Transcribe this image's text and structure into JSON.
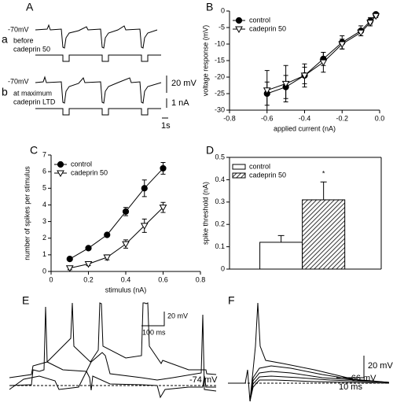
{
  "panels": {
    "a": {
      "letter": "A",
      "sub_a": "a",
      "rest_a": "-70mV",
      "cond_a1": "before",
      "cond_a2": "cadeprin 50",
      "sub_b": "b",
      "rest_b": "-70mV",
      "cond_b1": "at maximum",
      "cond_b2": "cadeprin LTD",
      "scale_v": "20 mV",
      "scale_i": "1 nA",
      "scale_t": "1s"
    },
    "b": {
      "letter": "B"
    },
    "c": {
      "letter": "C"
    },
    "d": {
      "letter": "D"
    },
    "e": {
      "letter": "E",
      "scale_v": "20 mV",
      "scale_t": "100 ms",
      "rest": "-74 mV"
    },
    "f": {
      "letter": "F",
      "scale_v": "20 mV",
      "scale_t": "10 ms",
      "rest": "- 66 mV"
    }
  },
  "chart_data": [
    {
      "type": "line",
      "xlabel": "applied current (nA)",
      "ylabel": "voltage response (mV)",
      "xlim": [
        -0.8,
        0
      ],
      "ylim": [
        -30,
        0
      ],
      "xticks": [
        -0.8,
        -0.6,
        -0.4,
        -0.2,
        {
          "value": 0,
          "label": "0.0"
        }
      ],
      "yticks": [
        -30,
        -25,
        -20,
        -15,
        -10,
        -5,
        0
      ],
      "legend": "upper left",
      "series": [
        {
          "name": "control",
          "marker": "circle",
          "color": "#000000",
          "x": [
            -0.6,
            -0.5,
            -0.4,
            -0.3,
            -0.2,
            -0.1,
            -0.05,
            -0.02
          ],
          "values": [
            -25,
            -23,
            -19.5,
            -14.5,
            -9.5,
            -6,
            -3,
            -1
          ],
          "errors": [
            3.5,
            3.5,
            2.5,
            2,
            2,
            1.5,
            1,
            0.5
          ]
        },
        {
          "name": "cadeprin 50",
          "marker": "triangle-down",
          "color": "#ffffff",
          "x": [
            -0.6,
            -0.5,
            -0.4,
            -0.3,
            -0.2,
            -0.1,
            -0.05,
            -0.02
          ],
          "values": [
            -24,
            -22,
            -19.5,
            -15.5,
            -10,
            -6.5,
            -3.5,
            -1.5
          ],
          "errors": [
            6,
            5.5,
            3.5,
            3,
            1.5,
            1,
            1,
            0.5
          ]
        }
      ]
    },
    {
      "type": "line",
      "xlabel": "stimulus (nA)",
      "ylabel": "number of spikes per stimulus",
      "xlim": [
        0,
        0.8
      ],
      "ylim": [
        0,
        7
      ],
      "xticks": [
        0,
        0.2,
        0.4,
        0.6,
        0.8
      ],
      "yticks": [
        0,
        1,
        2,
        3,
        4,
        5,
        6,
        7
      ],
      "legend": "upper left",
      "series": [
        {
          "name": "control",
          "marker": "circle",
          "color": "#000000",
          "x": [
            0.1,
            0.2,
            0.3,
            0.4,
            0.5,
            0.6
          ],
          "values": [
            0.75,
            1.4,
            2.2,
            3.6,
            5.0,
            6.2
          ],
          "errors": [
            0.1,
            0.1,
            0.1,
            0.25,
            0.5,
            0.35
          ]
        },
        {
          "name": "cadeprin 50",
          "marker": "triangle-down",
          "color": "#ffffff",
          "x": [
            0.1,
            0.2,
            0.3,
            0.4,
            0.5,
            0.6
          ],
          "values": [
            0.2,
            0.45,
            0.85,
            1.65,
            2.75,
            3.85
          ],
          "errors": [
            0.1,
            0.1,
            0.15,
            0.25,
            0.4,
            0.3
          ]
        }
      ]
    },
    {
      "type": "bar",
      "ylabel": "spike threshold (nA)",
      "ylim": [
        0,
        0.5
      ],
      "yticks": [
        0,
        0.1,
        0.2,
        0.3,
        0.4,
        0.5
      ],
      "legend": "upper left",
      "annotation": "*",
      "categories": [
        null
      ],
      "series": [
        {
          "name": "control",
          "color": "#ffffff",
          "values": [
            0.12
          ],
          "errors": [
            0.03
          ]
        },
        {
          "name": "cadeprin 50",
          "color": "hatch",
          "values": [
            0.31
          ],
          "errors": [
            0.08
          ]
        }
      ]
    }
  ]
}
